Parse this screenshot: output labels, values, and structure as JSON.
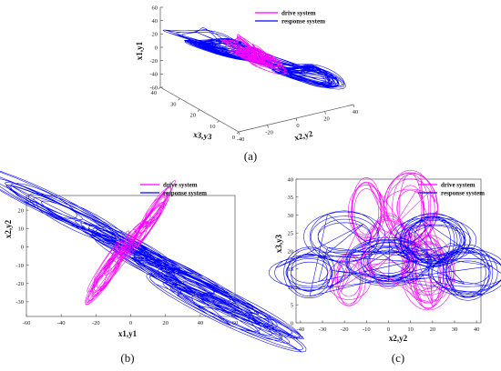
{
  "colors": {
    "drive": "#ff00ff",
    "response": "#0000ff"
  },
  "chart_data": [
    {
      "id": "a",
      "type": "line",
      "projection": "3d",
      "caption": "(a)",
      "xlabel": "x2,y2",
      "ylabel": "x3,y3",
      "zlabel": "x1,y1",
      "xticks": [
        "-40",
        "-20",
        "0",
        "20",
        "40"
      ],
      "yticks": [
        "0",
        "10",
        "20",
        "30",
        "40"
      ],
      "zticks": [
        "-60",
        "-40",
        "-20",
        "0",
        "20",
        "40",
        "60"
      ],
      "xlim": [
        -40,
        40
      ],
      "ylim": [
        0,
        40
      ],
      "zlim": [
        -60,
        60
      ],
      "legend": {
        "position": "top-right",
        "entries": [
          "drive system",
          "response system"
        ]
      },
      "series": [
        {
          "name": "drive system",
          "color": "#ff00ff",
          "x": [
            -9,
            9,
            -8,
            8,
            -6,
            6
          ],
          "y": [
            18,
            22,
            24,
            20,
            16,
            26
          ],
          "z": [
            12,
            -12,
            18,
            -16,
            8,
            -8
          ]
        },
        {
          "name": "response system",
          "color": "#0000ff",
          "x": [
            -32,
            34,
            -26,
            28,
            -36,
            30
          ],
          "y": [
            15,
            20,
            18,
            14,
            22,
            17
          ],
          "z": [
            38,
            -42,
            30,
            -34,
            44,
            -38
          ]
        }
      ]
    },
    {
      "id": "b",
      "type": "line",
      "caption": "(b)",
      "xlabel": "x1,y1",
      "ylabel": "x2,y2",
      "xticks": [
        "-60",
        "-40",
        "-20",
        "0",
        "20",
        "40",
        "60"
      ],
      "yticks": [
        "-30",
        "-20",
        "-10",
        "0",
        "10",
        "20"
      ],
      "xlim": [
        -60,
        60
      ],
      "ylim": [
        -38,
        28
      ],
      "legend": {
        "position": "top-right",
        "entries": [
          "drive system",
          "response system"
        ]
      },
      "series": [
        {
          "name": "drive system",
          "color": "#ff00ff",
          "x": [
            -13,
            -6,
            2,
            10,
            14,
            -14
          ],
          "y": [
            -8,
            -3,
            4,
            12,
            20,
            -15
          ]
        },
        {
          "name": "response system",
          "color": "#0000ff",
          "x": [
            -50,
            -30,
            0,
            25,
            50,
            55
          ],
          "y": [
            25,
            15,
            0,
            -15,
            -28,
            -36
          ]
        }
      ]
    },
    {
      "id": "c",
      "type": "line",
      "caption": "(c)",
      "xlabel": "x2,y2",
      "ylabel": "x3,y3",
      "xticks": [
        "-40",
        "-30",
        "-20",
        "-10",
        "0",
        "10",
        "20",
        "30",
        "40"
      ],
      "yticks": [
        "0",
        "5",
        "10",
        "15",
        "20",
        "25",
        "30",
        "35",
        "40"
      ],
      "xlim": [
        -42,
        42
      ],
      "ylim": [
        0,
        40
      ],
      "legend": {
        "position": "top-right",
        "entries": [
          "drive system",
          "response system"
        ]
      },
      "series": [
        {
          "name": "drive system",
          "color": "#ff00ff",
          "x": [
            -18,
            -10,
            0,
            10,
            18
          ],
          "y": [
            12,
            31,
            20,
            32,
            14
          ]
        },
        {
          "name": "response system",
          "color": "#0000ff",
          "x": [
            -36,
            -20,
            0,
            20,
            36
          ],
          "y": [
            14,
            24,
            17,
            23,
            14
          ]
        }
      ]
    }
  ]
}
